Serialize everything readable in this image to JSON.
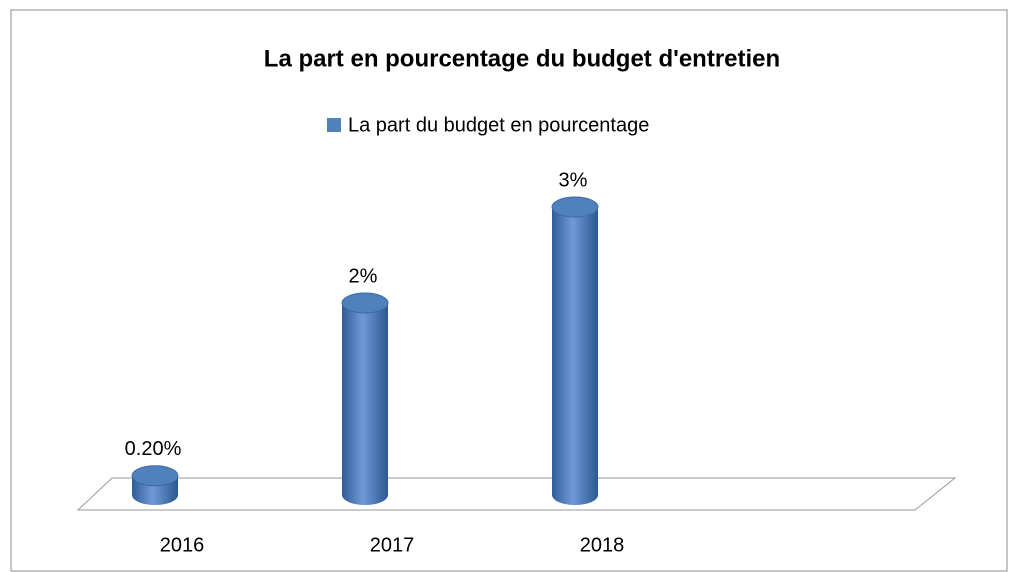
{
  "chart_data": {
    "type": "bar",
    "title": "La part en pourcentage du budget d'entretien",
    "categories": [
      "2016",
      "2017",
      "2018"
    ],
    "series": [
      {
        "name": "La part du budget en pourcentage",
        "color": "#4f81bd",
        "values": [
          0.2,
          2,
          3
        ],
        "value_labels": [
          "0.20%",
          "2%",
          "3%"
        ]
      }
    ],
    "ylim": [
      0,
      3.5
    ]
  }
}
